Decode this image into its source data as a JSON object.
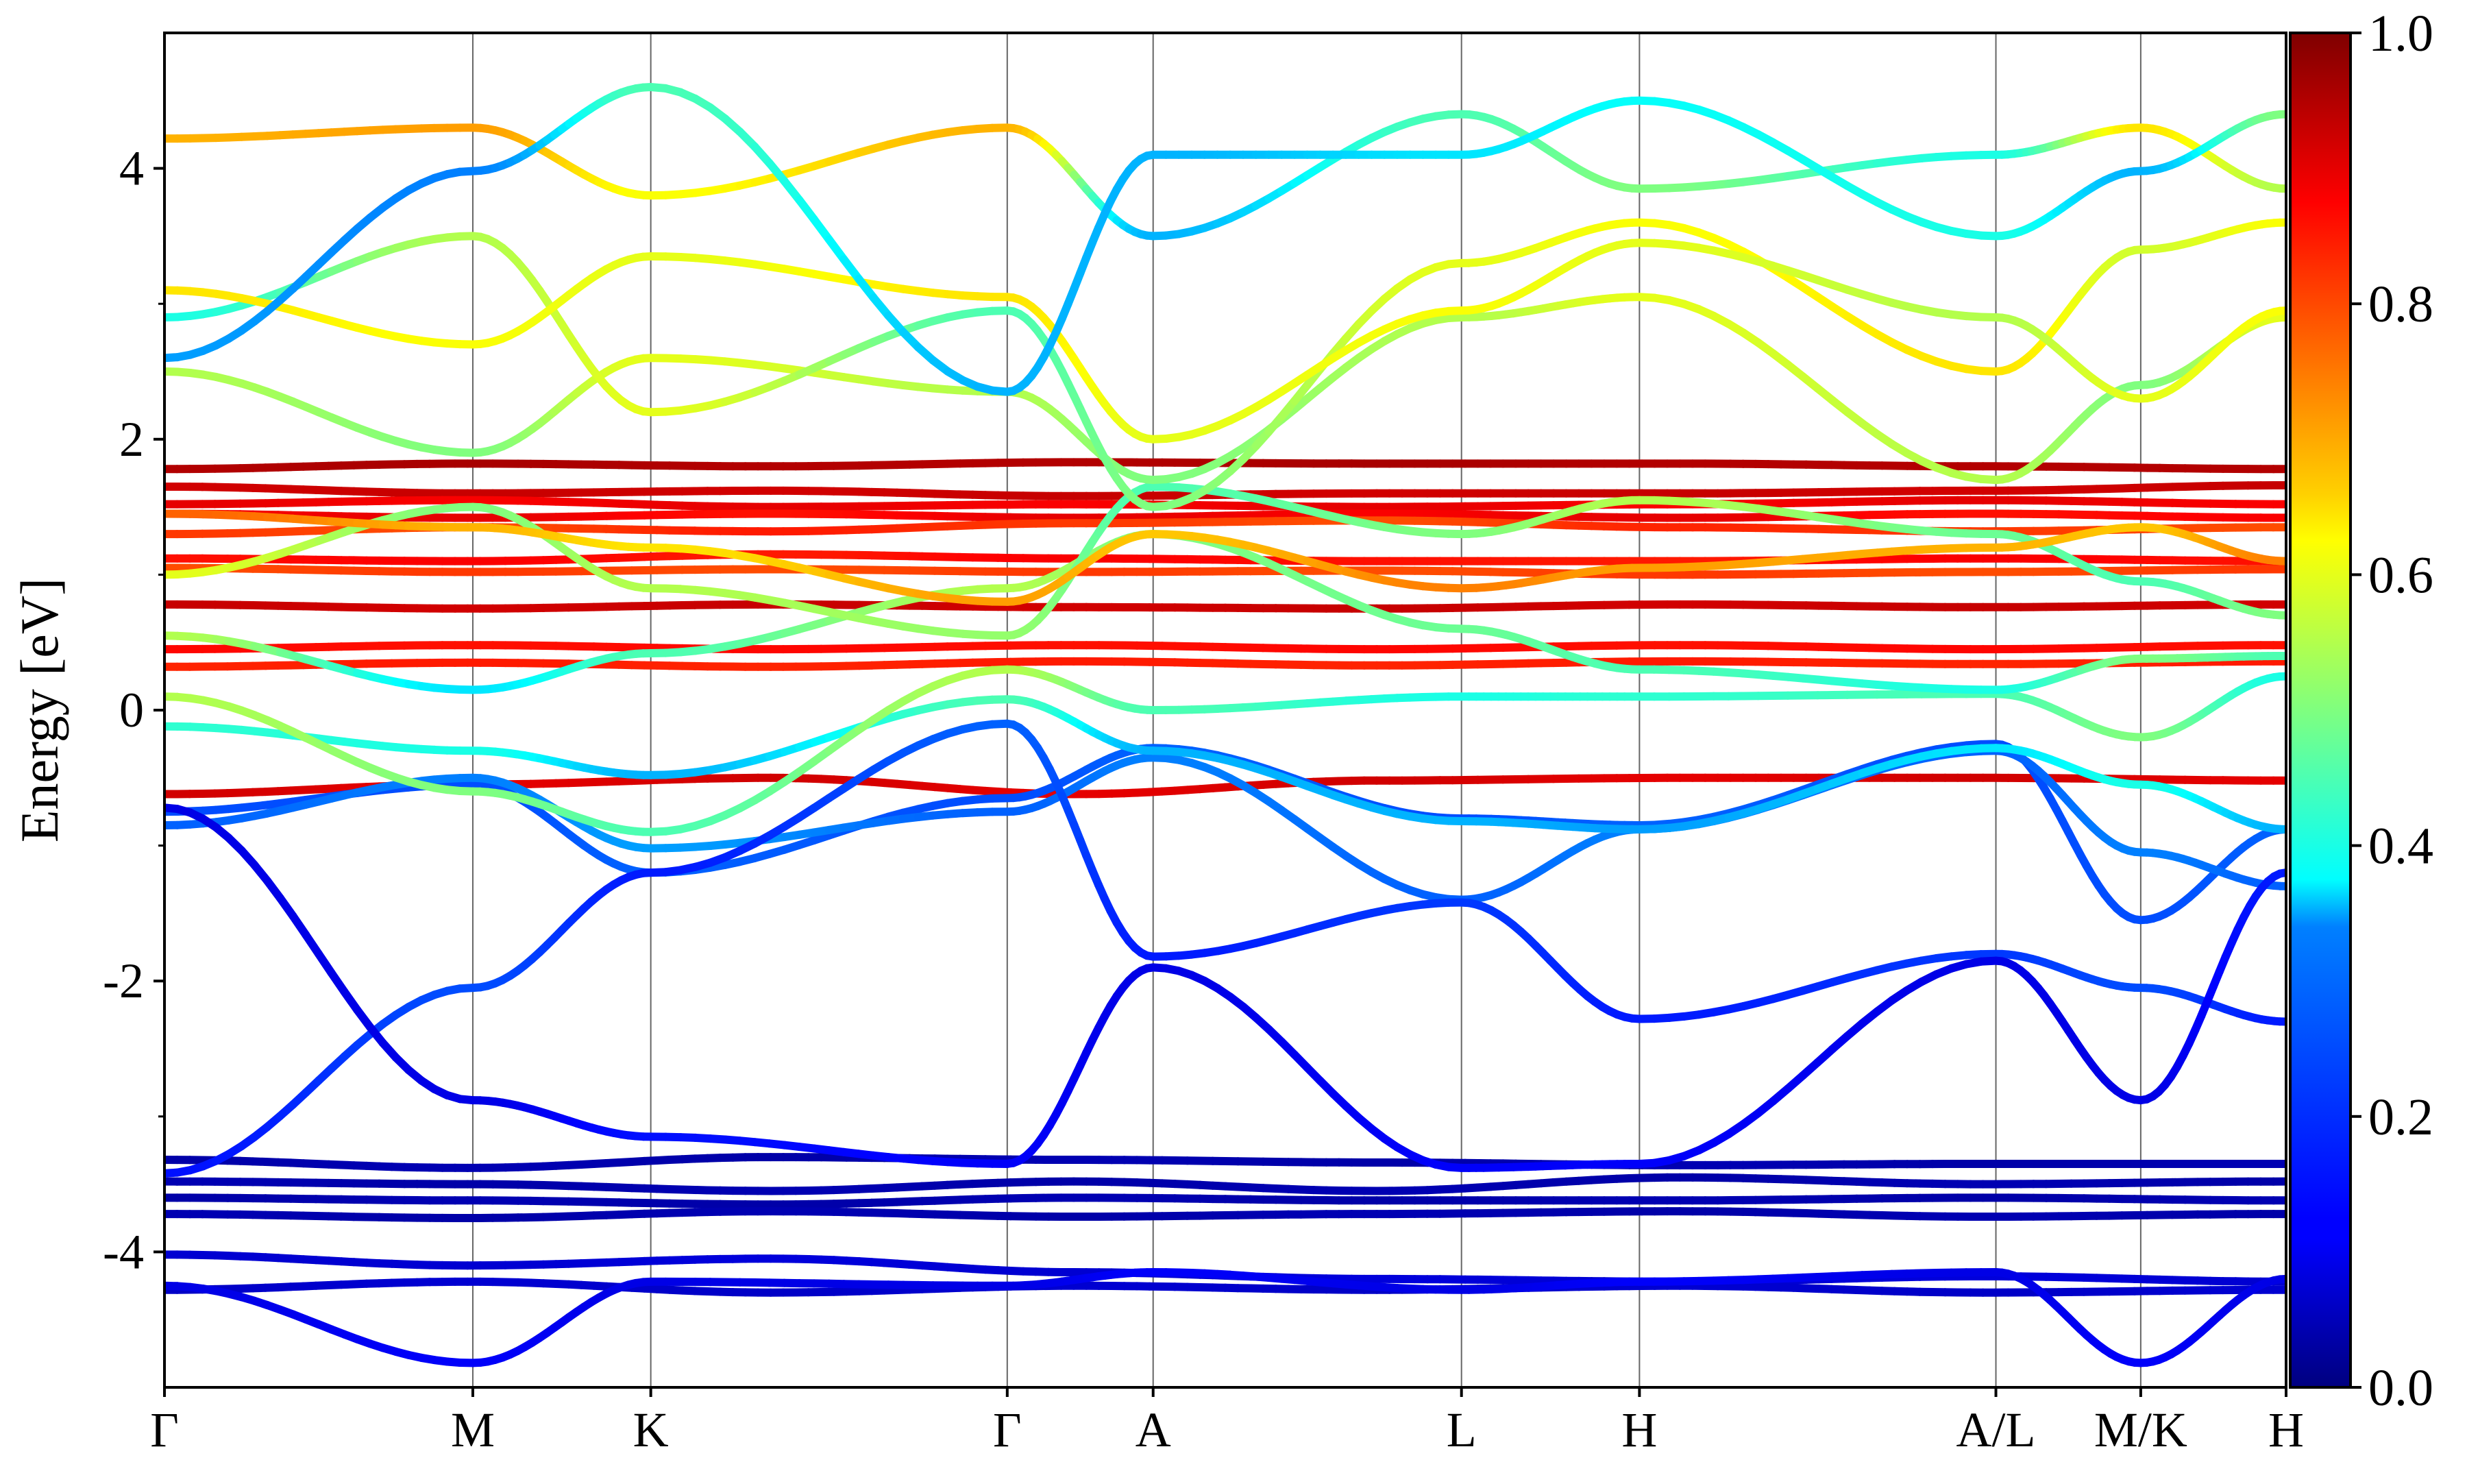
{
  "chart_data": {
    "type": "line",
    "title": "",
    "xlabel": "",
    "ylabel": "Energy [eV]",
    "ylim": [
      -5,
      5
    ],
    "yticks": [
      "4",
      "2",
      "0",
      "-2",
      "-4"
    ],
    "ytick_values": [
      4,
      2,
      0,
      -2,
      -4
    ],
    "minor_ytick_values": [
      3,
      1,
      -1,
      -3
    ],
    "k_path": [
      "Γ",
      "M",
      "K",
      "Γ",
      "A",
      "L",
      "H",
      "A/L",
      "M/K",
      "H"
    ],
    "k_positions": [
      0.0,
      0.577,
      0.91,
      1.577,
      1.85,
      2.427,
      2.76,
      3.427,
      3.698,
      3.97
    ],
    "colormap": "jet",
    "colorbar": {
      "min": 0.0,
      "max": 1.0,
      "ticks": [
        "1.0",
        "0.8",
        "0.6",
        "0.4",
        "0.2",
        "0.0"
      ],
      "tick_values": [
        1.0,
        0.8,
        0.6,
        0.4,
        0.2,
        0.0
      ]
    },
    "grid": "vertical lines at high-symmetry points",
    "series": [
      {
        "kind": "flat",
        "y": [
          1.78,
          1.82,
          1.8,
          1.83,
          1.82,
          1.82,
          1.8,
          1.78
        ],
        "w": [
          0.95,
          0.96,
          0.95,
          0.95,
          0.96,
          0.95,
          0.95,
          0.95
        ]
      },
      {
        "kind": "flat",
        "y": [
          1.65,
          1.6,
          1.62,
          1.58,
          1.6,
          1.6,
          1.62,
          1.66
        ],
        "w": [
          0.92,
          0.93,
          0.92,
          0.93,
          0.92,
          0.93,
          0.92,
          0.93
        ]
      },
      {
        "kind": "flat",
        "y": [
          1.52,
          1.55,
          1.5,
          1.52,
          1.5,
          1.52,
          1.55,
          1.52
        ],
        "w": [
          0.9,
          0.88,
          0.9,
          0.88,
          0.9,
          0.88,
          0.9,
          0.88
        ]
      },
      {
        "kind": "flat",
        "y": [
          1.45,
          1.42,
          1.45,
          1.42,
          1.45,
          1.42,
          1.45,
          1.42
        ],
        "w": [
          0.88,
          0.9,
          0.86,
          0.9,
          0.88,
          0.9,
          0.86,
          0.88
        ]
      },
      {
        "kind": "flat",
        "y": [
          1.3,
          1.35,
          1.32,
          1.38,
          1.4,
          1.35,
          1.32,
          1.35
        ],
        "w": [
          0.82,
          0.8,
          0.85,
          0.82,
          0.8,
          0.84,
          0.82,
          0.8
        ]
      },
      {
        "kind": "flat",
        "y": [
          1.12,
          1.1,
          1.15,
          1.12,
          1.1,
          1.1,
          1.12,
          1.1
        ],
        "w": [
          0.86,
          0.88,
          0.85,
          0.88,
          0.86,
          0.85,
          0.88,
          0.86
        ]
      },
      {
        "kind": "flat",
        "y": [
          1.05,
          1.02,
          1.04,
          1.02,
          1.03,
          1.0,
          1.02,
          1.04
        ],
        "w": [
          0.8,
          0.82,
          0.8,
          0.82,
          0.8,
          0.82,
          0.8,
          0.82
        ]
      },
      {
        "kind": "flat",
        "y": [
          0.78,
          0.75,
          0.78,
          0.76,
          0.75,
          0.78,
          0.76,
          0.78
        ],
        "w": [
          0.93,
          0.92,
          0.93,
          0.92,
          0.93,
          0.92,
          0.93,
          0.92
        ]
      },
      {
        "kind": "flat",
        "y": [
          0.45,
          0.48,
          0.45,
          0.48,
          0.45,
          0.48,
          0.45,
          0.48
        ],
        "w": [
          0.87,
          0.86,
          0.87,
          0.86,
          0.87,
          0.86,
          0.87,
          0.86
        ]
      },
      {
        "kind": "flat",
        "y": [
          0.32,
          0.35,
          0.32,
          0.36,
          0.33,
          0.36,
          0.34,
          0.36
        ],
        "w": [
          0.84,
          0.85,
          0.84,
          0.85,
          0.84,
          0.85,
          0.84,
          0.85
        ]
      },
      {
        "kind": "flat",
        "y": [
          -0.62,
          -0.55,
          -0.5,
          -0.62,
          -0.52,
          -0.5,
          -0.5,
          -0.52
        ],
        "w": [
          0.92,
          0.9,
          0.92,
          0.9,
          0.92,
          0.9,
          0.92,
          0.9
        ]
      },
      {
        "kind": "flat",
        "y": [
          -3.32,
          -3.38,
          -3.3,
          -3.32,
          -3.34,
          -3.36,
          -3.35,
          -3.35
        ],
        "w": [
          0.04,
          0.05,
          0.04,
          0.05,
          0.04,
          0.05,
          0.04,
          0.05
        ]
      },
      {
        "kind": "flat",
        "y": [
          -3.48,
          -3.5,
          -3.55,
          -3.48,
          -3.55,
          -3.45,
          -3.5,
          -3.48
        ],
        "w": [
          0.05,
          0.04,
          0.05,
          0.04,
          0.05,
          0.04,
          0.05,
          0.04
        ]
      },
      {
        "kind": "flat",
        "y": [
          -3.6,
          -3.62,
          -3.65,
          -3.6,
          -3.62,
          -3.62,
          -3.6,
          -3.62
        ],
        "w": [
          0.04,
          0.05,
          0.04,
          0.05,
          0.04,
          0.05,
          0.04,
          0.05
        ]
      },
      {
        "kind": "flat",
        "y": [
          -3.72,
          -3.75,
          -3.7,
          -3.74,
          -3.72,
          -3.7,
          -3.74,
          -3.72
        ],
        "w": [
          0.05,
          0.04,
          0.05,
          0.04,
          0.05,
          0.04,
          0.05,
          0.04
        ]
      },
      {
        "kind": "flat",
        "y": [
          -4.02,
          -4.1,
          -4.05,
          -4.15,
          -4.2,
          -4.22,
          -4.18,
          -4.22
        ],
        "w": [
          0.08,
          0.08,
          0.09,
          0.08,
          0.09,
          0.08,
          0.09,
          0.08
        ]
      },
      {
        "kind": "flat",
        "y": [
          -4.28,
          -4.22,
          -4.3,
          -4.25,
          -4.28,
          -4.25,
          -4.3,
          -4.28
        ],
        "w": [
          0.07,
          0.08,
          0.07,
          0.08,
          0.07,
          0.08,
          0.07,
          0.08
        ]
      },
      {
        "kind": "disp",
        "y": [
          -0.75,
          -0.55,
          -1.2,
          -0.65,
          -0.28,
          -0.8,
          -0.85,
          -0.25,
          -1.55,
          -0.88
        ],
        "w": [
          0.2,
          0.2,
          0.22,
          0.2,
          0.22,
          0.2,
          0.22,
          0.2,
          0.2,
          0.22
        ]
      },
      {
        "kind": "disp",
        "y": [
          -0.85,
          -0.5,
          -1.02,
          -0.75,
          -0.35,
          -1.4,
          -0.88,
          -0.3,
          -1.05,
          -1.3
        ],
        "w": [
          0.22,
          0.25,
          0.28,
          0.22,
          0.25,
          0.22,
          0.25,
          0.22,
          0.25,
          0.22
        ]
      },
      {
        "kind": "disp",
        "y": [
          -3.42,
          -2.05,
          -1.2,
          -0.1,
          -1.82,
          -1.42,
          -2.28,
          -1.8,
          -2.05,
          -2.3
        ],
        "w": [
          0.14,
          0.2,
          0.15,
          0.22,
          0.15,
          0.18,
          0.15,
          0.18,
          0.2,
          0.15
        ]
      },
      {
        "kind": "disp",
        "y": [
          -0.72,
          -2.88,
          -3.15,
          -3.35,
          -1.9,
          -3.38,
          -3.35,
          -1.85,
          -2.88,
          -1.2
        ],
        "w": [
          0.1,
          0.1,
          0.14,
          0.12,
          0.1,
          0.12,
          0.12,
          0.1,
          0.1,
          0.15
        ]
      },
      {
        "kind": "disp",
        "y": [
          -4.25,
          -4.82,
          -4.22,
          -4.25,
          -4.15,
          -4.28,
          -4.22,
          -4.15,
          -4.82,
          -4.2
        ],
        "w": [
          0.1,
          0.12,
          0.1,
          0.1,
          0.12,
          0.1,
          0.12,
          0.1,
          0.12,
          0.1
        ]
      },
      {
        "kind": "disp",
        "y": [
          -0.12,
          -0.3,
          -0.48,
          0.08,
          -0.3,
          -0.82,
          -0.88,
          -0.28,
          -0.55,
          -0.88
        ],
        "w": [
          0.42,
          0.4,
          0.3,
          0.45,
          0.3,
          0.3,
          0.28,
          0.35,
          0.4,
          0.3
        ]
      },
      {
        "kind": "disp",
        "y": [
          0.1,
          -0.6,
          -0.9,
          0.3,
          0.0,
          0.1,
          0.1,
          0.12,
          -0.2,
          0.25
        ],
        "w": [
          0.55,
          0.5,
          0.45,
          0.55,
          0.45,
          0.4,
          0.42,
          0.45,
          0.5,
          0.4
        ]
      },
      {
        "kind": "disp",
        "y": [
          0.55,
          0.15,
          0.42,
          0.9,
          1.3,
          0.6,
          0.3,
          0.15,
          0.38,
          0.4
        ],
        "w": [
          0.55,
          0.35,
          0.45,
          0.55,
          0.5,
          0.48,
          0.45,
          0.4,
          0.5,
          0.45
        ]
      },
      {
        "kind": "disp",
        "y": [
          1.0,
          1.5,
          0.9,
          0.55,
          1.65,
          1.3,
          1.55,
          1.3,
          0.95,
          0.7
        ],
        "w": [
          0.6,
          0.5,
          0.55,
          0.52,
          0.45,
          0.5,
          0.55,
          0.48,
          0.45,
          0.5
        ]
      },
      {
        "kind": "disp",
        "y": [
          2.5,
          1.9,
          2.6,
          2.35,
          1.7,
          2.9,
          3.05,
          1.7,
          2.4,
          2.9
        ],
        "w": [
          0.55,
          0.5,
          0.6,
          0.55,
          0.5,
          0.55,
          0.6,
          0.55,
          0.5,
          0.6
        ]
      },
      {
        "kind": "disp",
        "y": [
          2.9,
          3.5,
          2.2,
          2.95,
          1.5,
          3.3,
          3.6,
          2.5,
          3.4,
          3.6
        ],
        "w": [
          0.4,
          0.55,
          0.6,
          0.45,
          0.5,
          0.6,
          0.62,
          0.65,
          0.58,
          0.62
        ]
      },
      {
        "kind": "disp",
        "y": [
          3.1,
          2.7,
          3.35,
          3.05,
          2.0,
          2.95,
          3.45,
          2.9,
          2.3,
          2.95
        ],
        "w": [
          0.65,
          0.62,
          0.6,
          0.65,
          0.6,
          0.62,
          0.6,
          0.55,
          0.6,
          0.62
        ]
      },
      {
        "kind": "disp",
        "y": [
          4.22,
          4.3,
          3.8,
          4.3,
          3.5,
          4.4,
          3.85,
          4.1,
          4.3,
          3.85
        ],
        "w": [
          0.7,
          0.72,
          0.62,
          0.7,
          0.3,
          0.45,
          0.5,
          0.4,
          0.65,
          0.55
        ]
      },
      {
        "kind": "disp",
        "y": [
          2.6,
          3.98,
          4.6,
          2.35,
          4.1,
          4.1,
          4.5,
          3.5,
          3.98,
          4.4
        ],
        "w": [
          0.28,
          0.25,
          0.45,
          0.3,
          0.3,
          0.35,
          0.38,
          0.4,
          0.3,
          0.5
        ]
      },
      {
        "kind": "disp",
        "y": [
          1.45,
          1.35,
          1.2,
          0.8,
          1.3,
          0.9,
          1.05,
          1.2,
          1.35,
          1.1
        ],
        "w": [
          0.78,
          0.7,
          0.65,
          0.72,
          0.68,
          0.75,
          0.72,
          0.7,
          0.68,
          0.75
        ]
      }
    ]
  }
}
